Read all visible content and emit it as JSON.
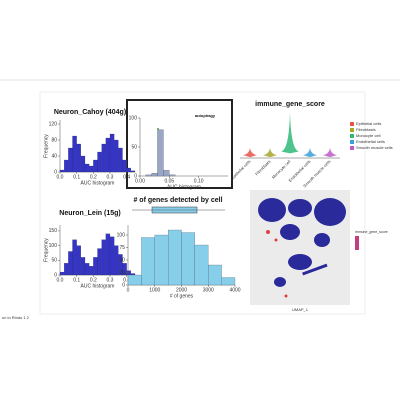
{
  "page": {
    "footer": "un in Rindu 1 2"
  },
  "chart_data": [
    {
      "type": "histogram",
      "title": "Neuron_Cahoy (404g)",
      "x_label": "AUC histogram",
      "y_label": "Frequency",
      "bins": [
        0,
        0.025,
        0.05,
        0.075,
        0.1,
        0.125,
        0.15,
        0.175,
        0.2,
        0.225,
        0.25,
        0.275,
        0.3,
        0.325,
        0.35,
        0.375,
        0.4,
        0.425,
        0.45
      ],
      "values": [
        5,
        30,
        60,
        90,
        70,
        40,
        20,
        15,
        30,
        50,
        70,
        85,
        95,
        80,
        60,
        30,
        10,
        3
      ],
      "color": "#3434c8",
      "xlim": [
        0,
        0.45
      ],
      "ylim": [
        0,
        130
      ],
      "xticks": [
        {
          "value": 0,
          "label": "0.0"
        },
        0.1,
        0.2,
        0.3,
        0.4
      ],
      "yticks": [
        0,
        40,
        80,
        120
      ]
    },
    {
      "type": "histogram",
      "title": "autophagy",
      "x_label": "AUC histogram",
      "bins": [
        0,
        0.01,
        0.02,
        0.03,
        0.04,
        0.05,
        0.06,
        0.07,
        0.08,
        0.09,
        0.1,
        0.11,
        0.12,
        0.13,
        0.14,
        0.15
      ],
      "values": [
        0,
        2,
        5,
        80,
        10,
        2,
        0,
        0,
        0,
        0,
        0,
        0,
        0,
        0,
        0
      ],
      "color": "#9aa6c8",
      "xlim": [
        0,
        0.15
      ],
      "ylim": [
        0,
        100
      ],
      "xticks": [
        {
          "value": 0,
          "label": "0.00"
        },
        0.05,
        {
          "value": 0.1,
          "label": "0.10"
        }
      ],
      "yticks": [
        0,
        50,
        100
      ]
    },
    {
      "type": "violin",
      "title": "immune_gene_score",
      "categories": [
        "Epithelial cells",
        "Fibroblasts",
        "Monocyte cell",
        "Endothelial cells",
        "Smooth muscle cells"
      ],
      "values": [
        0.05,
        0.05,
        0.1,
        0.05,
        0.05
      ],
      "colors": [
        "#e8534a",
        "#a6a62a",
        "#2fb878",
        "#3aa0d8",
        "#c05ac8"
      ],
      "ylim": [
        0,
        0.6
      ]
    },
    {
      "type": "histogram",
      "title": "Neuron_Lein (15g)",
      "x_label": "AUC histogram",
      "y_label": "Frequency",
      "bins": [
        0,
        0.025,
        0.05,
        0.075,
        0.1,
        0.125,
        0.15,
        0.175,
        0.2,
        0.225,
        0.25,
        0.275,
        0.3,
        0.325,
        0.35,
        0.375,
        0.4,
        0.425,
        0.45
      ],
      "values": [
        10,
        40,
        80,
        120,
        100,
        60,
        40,
        30,
        60,
        90,
        120,
        140,
        130,
        100,
        70,
        40,
        15,
        5
      ],
      "color": "#3434c8",
      "xlim": [
        0,
        0.45
      ],
      "ylim": [
        0,
        170
      ],
      "xticks": [
        {
          "value": 0,
          "label": "0.0"
        },
        0.1,
        0.2,
        0.3,
        0.4
      ],
      "yticks": [
        0,
        50,
        100,
        150
      ]
    },
    {
      "type": "histogram",
      "title": "# of genes detected by cell",
      "x_label": "# of genes",
      "bins": [
        0,
        500,
        1000,
        1500,
        2000,
        2500,
        3000,
        3500,
        4000
      ],
      "values": [
        20,
        95,
        100,
        110,
        105,
        80,
        40,
        15
      ],
      "color": "#87ceeb",
      "xlim": [
        0,
        4000
      ],
      "ylim": [
        0,
        120
      ],
      "xticks": [
        0,
        1000,
        2000,
        3000,
        4000
      ],
      "yticks": [
        0,
        25,
        50,
        75,
        100
      ]
    }
  ],
  "umap": {
    "legend_title": "immune_gene_score",
    "x_label": "UMAP_1"
  }
}
